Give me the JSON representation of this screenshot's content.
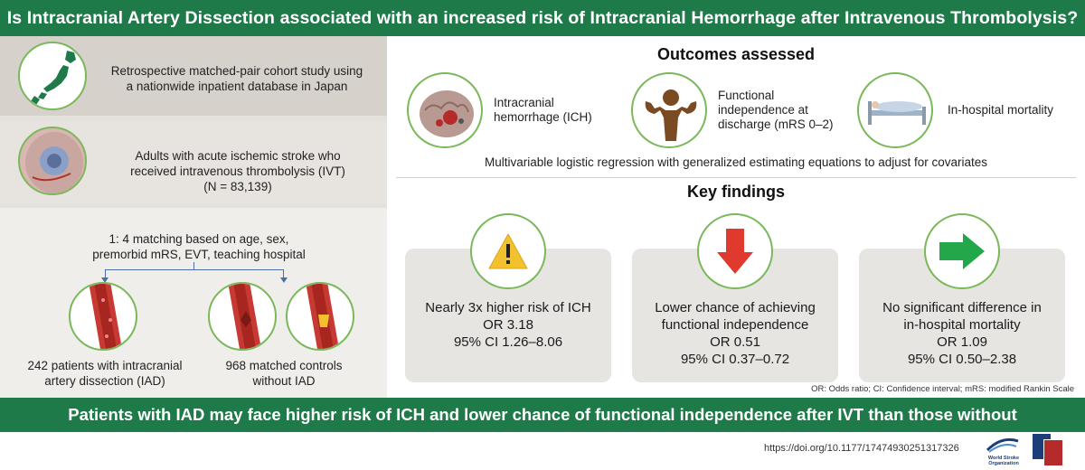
{
  "title": "Is Intracranial Artery Dissection associated with an increased risk of Intracranial Hemorrhage after Intravenous Thrombolysis?",
  "left": {
    "study_design": [
      "Retrospective matched-pair cohort study using",
      "a nationwide inpatient database in Japan"
    ],
    "population": [
      "Adults with acute ischemic stroke who",
      "received intravenous thrombolysis (IVT)",
      "(N = 83,139)"
    ],
    "matching": [
      "1: 4 matching based on age, sex,",
      "premorbid mRS, EVT, teaching hospital"
    ],
    "group_iad": [
      "242 patients with intracranial",
      "artery dissection (IAD)"
    ],
    "group_controls": [
      "968 matched controls",
      "without IAD"
    ]
  },
  "outcomes": {
    "title": "Outcomes assessed",
    "ich": [
      "Intracranial",
      "hemorrhage (ICH)"
    ],
    "functional": [
      "Functional",
      "independence at",
      "discharge (mRS 0–2)"
    ],
    "mortality": "In-hospital mortality",
    "method": "Multivariable logistic regression with generalized estimating equations to adjust for covariates"
  },
  "findings": {
    "title": "Key findings",
    "cards": [
      {
        "icon": "warning-icon",
        "lines": [
          "Nearly 3x higher risk of ICH",
          "OR 3.18",
          "95% CI 1.26–8.06"
        ]
      },
      {
        "icon": "arrow-down-icon",
        "lines": [
          "Lower chance of achieving",
          "functional independence",
          "OR 0.51",
          "95% CI 0.37–0.72"
        ]
      },
      {
        "icon": "arrow-right-icon",
        "lines": [
          "No significant difference in",
          "in-hospital mortality",
          "OR 1.09",
          "95% CI 0.50–2.38"
        ]
      }
    ]
  },
  "footnote": "OR: Odds ratio; CI: Confidence interval; mRS: modified Rankin Scale",
  "conclusion": "Patients with IAD may face higher risk of ICH and lower chance of functional independence after IVT than those without",
  "doi": "https://doi.org/10.1177/17474930251317326",
  "logos": {
    "wso_name": "World Stroke Organization"
  },
  "colors": {
    "brand_green": "#1f7a4a",
    "circle_border": "#7ab85a",
    "warning_yellow": "#f2c12e",
    "arrow_red": "#e03a2f",
    "arrow_green": "#22a84a"
  }
}
